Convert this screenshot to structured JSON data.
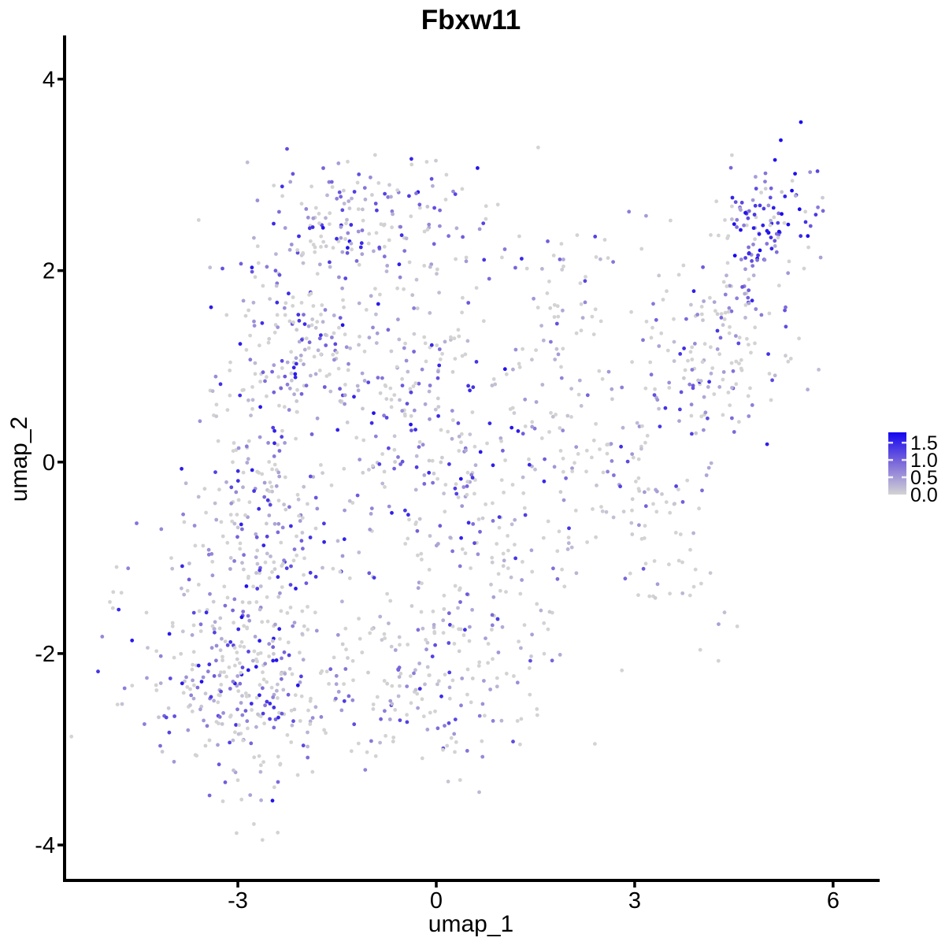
{
  "chart_data": {
    "type": "scatter",
    "title": "Fbxw11",
    "xlabel": "umap_1",
    "ylabel": "umap_2",
    "x_ticks": [
      -3,
      0,
      3,
      6
    ],
    "x_tick_labels": [
      "-3",
      "0",
      "3",
      "6"
    ],
    "y_ticks": [
      4,
      2,
      0,
      -2,
      -4
    ],
    "y_tick_labels": [
      "4",
      "2",
      "0",
      "-2",
      "-4"
    ],
    "x_range": [
      -5.62,
      6.68
    ],
    "y_range": [
      -4.37,
      4.44
    ],
    "grid": "off",
    "legend": {
      "position": "right",
      "ticks": [
        1.5,
        1.0,
        0.5,
        0.0
      ],
      "tick_labels": [
        "1.5",
        "1.0",
        "0.5",
        "0.0"
      ],
      "min": 0.0,
      "max": 1.8,
      "color_low": "#D3D3D3",
      "color_mid": "#7E6BDA",
      "color_high": "#1406F0"
    },
    "point_radius": 2.4,
    "seed": 42,
    "n_points": 1926,
    "clusters": [
      {
        "name": "top-mid",
        "n": 170,
        "cx": -0.9,
        "cy": 2.55,
        "sx": 1.05,
        "sy": 0.3,
        "rot": 0,
        "p_zero": 0.32,
        "pow": 1.2,
        "max": 1.7
      },
      {
        "name": "upper-left",
        "n": 200,
        "cx": -2.15,
        "cy": 1.25,
        "sx": 0.55,
        "sy": 0.5,
        "rot": -20,
        "p_zero": 0.33,
        "pow": 1.5,
        "max": 1.7
      },
      {
        "name": "mid-center",
        "n": 250,
        "cx": -0.1,
        "cy": 0.35,
        "sx": 0.75,
        "sy": 0.85,
        "rot": 0,
        "p_zero": 0.36,
        "pow": 1.5,
        "max": 1.7
      },
      {
        "name": "left-band",
        "n": 170,
        "cx": -2.75,
        "cy": -0.5,
        "sx": 0.6,
        "sy": 0.5,
        "rot": 0,
        "p_zero": 0.35,
        "pow": 1.5,
        "max": 1.6
      },
      {
        "name": "lower-left",
        "n": 380,
        "cx": -2.8,
        "cy": -2.15,
        "sx": 0.8,
        "sy": 0.62,
        "rot": 15,
        "p_zero": 0.35,
        "pow": 1.4,
        "max": 1.7
      },
      {
        "name": "bottom-mid",
        "n": 150,
        "cx": -0.1,
        "cy": -2.35,
        "sx": 0.65,
        "sy": 0.5,
        "rot": 0,
        "p_zero": 0.4,
        "pow": 1.5,
        "max": 1.5
      },
      {
        "name": "right-column",
        "n": 120,
        "cx": 1.1,
        "cy": -1.1,
        "sx": 0.6,
        "sy": 0.8,
        "rot": 0,
        "p_zero": 0.45,
        "pow": 1.6,
        "max": 1.5
      },
      {
        "name": "arm-lower",
        "n": 80,
        "cx": 3.1,
        "cy": -0.75,
        "sx": 0.75,
        "sy": 0.4,
        "rot": -45,
        "p_zero": 0.55,
        "pow": 1.7,
        "max": 1.3
      },
      {
        "name": "arm-upper",
        "n": 200,
        "cx": 4.15,
        "cy": 1.05,
        "sx": 0.85,
        "sy": 0.5,
        "rot": 40,
        "p_zero": 0.45,
        "pow": 1.3,
        "max": 1.6
      },
      {
        "name": "top-right",
        "n": 110,
        "cx": 4.95,
        "cy": 2.5,
        "sx": 0.4,
        "sy": 0.3,
        "rot": 25,
        "p_zero": 0.22,
        "pow": 0.65,
        "max": 1.8
      },
      {
        "name": "left-outliers",
        "n": 6,
        "cx": -4.82,
        "cy": -1.25,
        "sx": 0.08,
        "sy": 0.12,
        "rot": 0,
        "p_zero": 0.5,
        "pow": 1.2,
        "max": 0.9
      },
      {
        "name": "bridge-top",
        "n": 50,
        "cx": 2.0,
        "cy": 1.9,
        "sx": 0.55,
        "sy": 0.45,
        "rot": 0,
        "p_zero": 0.5,
        "pow": 1.5,
        "max": 1.4
      },
      {
        "name": "bridge-mid",
        "n": 40,
        "cx": 1.9,
        "cy": 0.55,
        "sx": 0.5,
        "sy": 0.45,
        "rot": 0,
        "p_zero": 0.55,
        "pow": 1.6,
        "max": 1.2
      }
    ]
  }
}
